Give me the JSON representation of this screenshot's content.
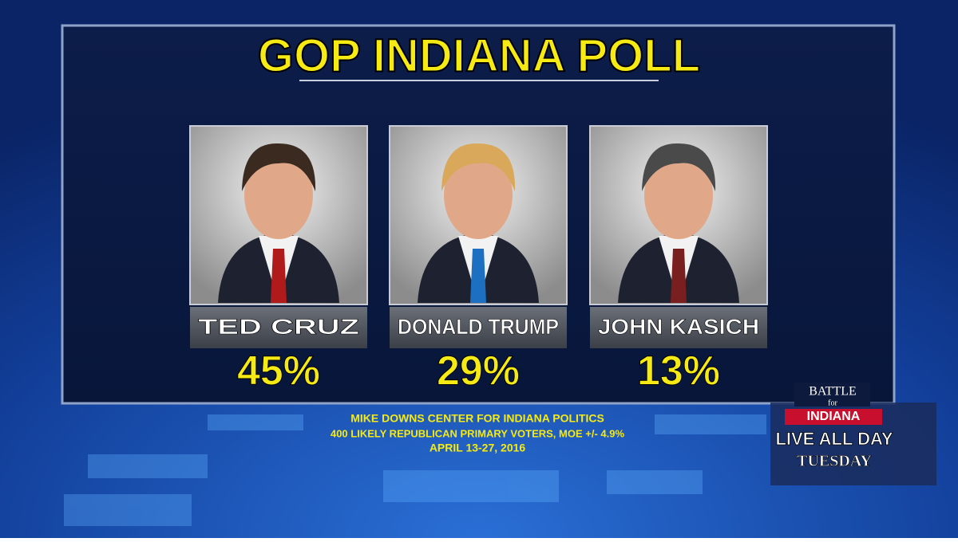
{
  "header": {
    "title": "GOP INDIANA POLL"
  },
  "candidates": [
    {
      "name": "TED CRUZ",
      "result": "45%"
    },
    {
      "name": "DONALD TRUMP",
      "result": "29%"
    },
    {
      "name": "JOHN KASICH",
      "result": "13%"
    }
  ],
  "source": {
    "line1": "MIKE DOWNS CENTER FOR INDIANA POLITICS",
    "line2": "400 LIKELY REPUBLICAN PRIMARY VOTERS, MOE +/- 4.9%",
    "line3": "APRIL 13-27, 2016"
  },
  "logo": {
    "battle": "BATTLE",
    "for": "for",
    "state": "INDIANA",
    "live": "LIVE ALL DAY",
    "day": "TUESDAY"
  }
}
